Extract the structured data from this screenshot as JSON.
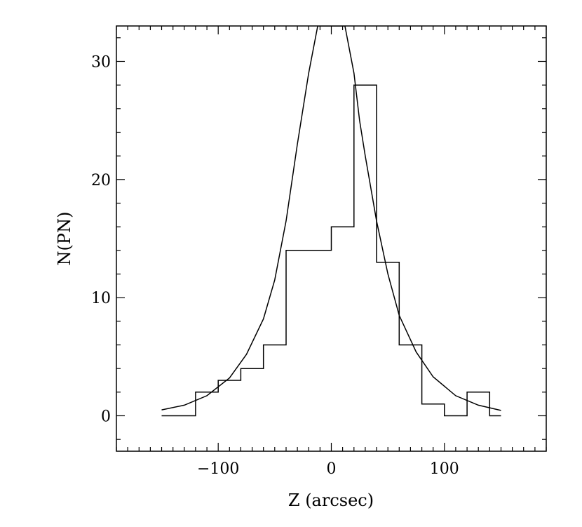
{
  "chart_data": {
    "type": "histogram",
    "xlabel": "Z (arcsec)",
    "ylabel": "N(PN)",
    "xlim": [
      -190,
      190
    ],
    "ylim": [
      -3,
      33
    ],
    "x_ticks": [
      {
        "value": -100,
        "label": "−100"
      },
      {
        "value": 0,
        "label": "0"
      },
      {
        "value": 100,
        "label": "100"
      }
    ],
    "y_ticks": [
      {
        "value": 0,
        "label": "0"
      },
      {
        "value": 10,
        "label": "10"
      },
      {
        "value": 20,
        "label": "20"
      },
      {
        "value": 30,
        "label": "30"
      }
    ],
    "x_minor_step": 10,
    "y_minor_step": 2,
    "histogram": {
      "bin_edges": [
        -150,
        -120,
        -100,
        -80,
        -60,
        -40,
        0,
        20,
        40,
        60,
        80,
        100,
        120,
        140,
        150
      ],
      "counts": [
        0,
        2,
        3,
        4,
        6,
        14,
        16,
        28,
        13,
        6,
        1,
        0,
        2,
        0
      ]
    },
    "curve": {
      "x": [
        -150,
        -130,
        -110,
        -90,
        -75,
        -60,
        -50,
        -40,
        -30,
        -20,
        -12,
        12,
        20,
        25,
        30,
        40,
        50,
        60,
        75,
        90,
        110,
        130,
        150
      ],
      "y": [
        0.5,
        0.9,
        1.7,
        3.2,
        5.2,
        8.2,
        11.5,
        16.5,
        23,
        29,
        33,
        33,
        29,
        25,
        22,
        16.5,
        12,
        8.5,
        5.4,
        3.3,
        1.7,
        0.9,
        0.45
      ]
    },
    "grid": false
  }
}
